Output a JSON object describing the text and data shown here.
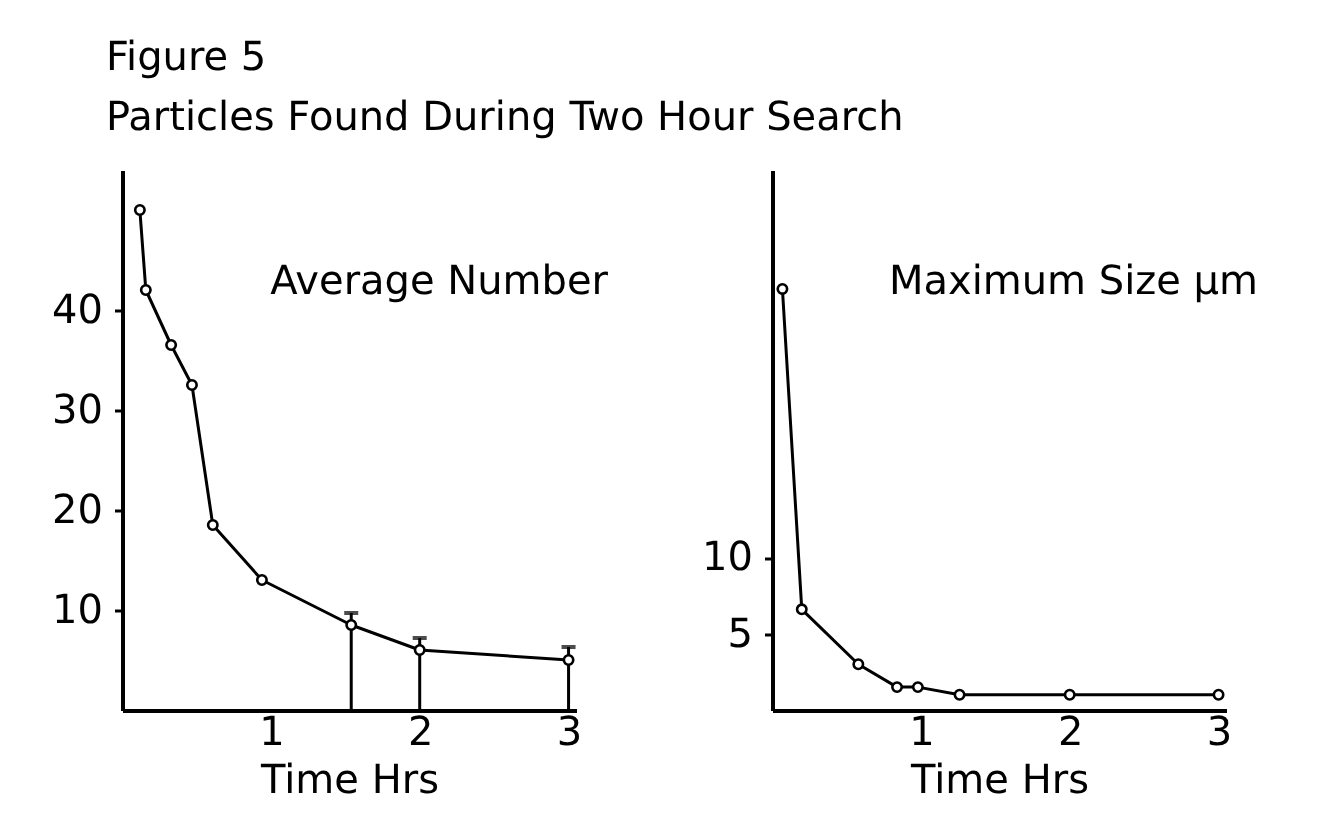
{
  "chart_data": [
    {
      "type": "line",
      "title": "Average Number",
      "annotations": [
        "Figure 5",
        "Particles Found During Two Hour Search"
      ],
      "xlabel": "Time Hrs",
      "x": [
        0.12,
        0.16,
        0.33,
        0.47,
        0.61,
        0.94,
        1.54,
        2.0,
        3.0
      ],
      "values": [
        50,
        42,
        36.5,
        32.5,
        18.5,
        13,
        8.5,
        6,
        5
      ],
      "errors": [
        null,
        null,
        null,
        null,
        null,
        null,
        [
          0,
          9.7
        ],
        [
          0,
          7.2
        ],
        [
          0,
          6.3
        ]
      ],
      "color": "#000000",
      "xlim": [
        0,
        3.05
      ],
      "xticks": [
        1,
        2,
        3
      ],
      "ylim": [
        0,
        54
      ],
      "yticks": [
        10,
        20,
        30,
        40
      ],
      "marker": "circle",
      "line_style": "solid"
    },
    {
      "type": "line",
      "title": "Maximum Size µm",
      "xlabel": "Time Hrs",
      "x": [
        0.07,
        0.2,
        0.58,
        0.84,
        0.98,
        1.26,
        2.0,
        3.0
      ],
      "values": [
        27.6,
        6.6,
        3.0,
        1.5,
        1.5,
        1.0,
        1.0,
        1.0
      ],
      "color": "#000000",
      "xlim": [
        0,
        3.05
      ],
      "xticks": [
        1,
        2,
        3
      ],
      "ylim": [
        0,
        35.4
      ],
      "yticks": [
        5,
        10
      ],
      "marker": "circle",
      "line_style": "solid"
    }
  ]
}
